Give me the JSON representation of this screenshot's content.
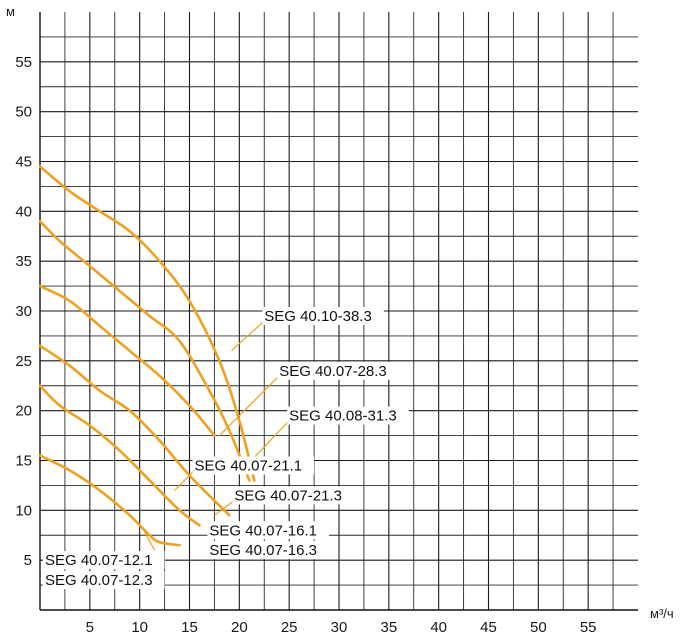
{
  "chart_data": {
    "type": "line",
    "title": "",
    "xlabel": "м³/ч",
    "ylabel": "м",
    "xlim": [
      0,
      60
    ],
    "ylim": [
      0,
      60
    ],
    "grid": true,
    "x_ticks": [
      5,
      10,
      15,
      20,
      25,
      30,
      35,
      40,
      45,
      50,
      55
    ],
    "y_ticks": [
      5,
      10,
      15,
      20,
      25,
      30,
      35,
      40,
      45,
      50,
      55
    ],
    "curve_color": "#f0a020",
    "series": [
      {
        "name": "SEG 40.10-38.3",
        "points": [
          [
            0,
            44.5
          ],
          [
            3,
            42
          ],
          [
            6,
            40
          ],
          [
            9,
            38
          ],
          [
            12,
            35
          ],
          [
            15,
            31
          ],
          [
            18,
            25
          ],
          [
            20,
            19
          ],
          [
            21.5,
            13
          ]
        ]
      },
      {
        "name": "SEG 40.08-31.3",
        "points": [
          [
            0,
            39
          ],
          [
            2,
            37
          ],
          [
            5,
            34.5
          ],
          [
            8,
            32
          ],
          [
            11,
            29.5
          ],
          [
            14,
            27
          ],
          [
            17,
            22
          ],
          [
            19,
            18
          ],
          [
            21,
            13
          ]
        ]
      },
      {
        "name": "SEG 40.07-28.3",
        "points": [
          [
            0,
            32.5
          ],
          [
            3,
            31
          ],
          [
            6,
            28.5
          ],
          [
            9,
            26
          ],
          [
            12,
            23.5
          ],
          [
            15,
            20.5
          ],
          [
            17.5,
            17.5
          ]
        ]
      },
      {
        "name": "SEG 40.07-21.3",
        "points": [
          [
            0,
            26.5
          ],
          [
            3,
            24.5
          ],
          [
            6,
            22
          ],
          [
            9,
            20
          ],
          [
            12,
            17
          ],
          [
            15,
            13.5
          ],
          [
            19,
            9.5
          ]
        ]
      },
      {
        "name": "SEG 40.07-16.3",
        "points": [
          [
            0,
            22.5
          ],
          [
            2,
            20.5
          ],
          [
            5,
            18.5
          ],
          [
            8,
            16
          ],
          [
            11,
            13
          ],
          [
            14,
            10
          ],
          [
            16,
            8.5
          ]
        ]
      },
      {
        "name": "SEG 40.07-12.3",
        "points": [
          [
            0,
            15.5
          ],
          [
            3,
            14
          ],
          [
            6,
            12
          ],
          [
            9,
            9.5
          ],
          [
            11,
            7.5
          ],
          [
            12,
            6.8
          ],
          [
            14,
            6.5
          ]
        ]
      }
    ],
    "annotations": [
      {
        "text": "SEG 40.10-38.3",
        "at": [
          22.5,
          29
        ]
      },
      {
        "text": "SEG 40.07-28.3",
        "at": [
          24,
          23.5
        ]
      },
      {
        "text": "SEG 40.08-31.3",
        "at": [
          25,
          19
        ]
      },
      {
        "text": "SEG 40.07-21.1",
        "at": [
          15.5,
          14
        ]
      },
      {
        "text": "SEG 40.07-21.3",
        "at": [
          19.5,
          11
        ]
      },
      {
        "text": "SEG 40.07-16.1",
        "at": [
          17,
          7.5
        ]
      },
      {
        "text": "SEG 40.07-16.3",
        "at": [
          17,
          5.5
        ]
      },
      {
        "text": "SEG 40.07-12.1",
        "at": [
          0.5,
          4.5
        ]
      },
      {
        "text": "SEG 40.07-12.3",
        "at": [
          0.5,
          2.5
        ]
      }
    ]
  },
  "axis": {
    "y_unit": "м",
    "x_unit": "м³/ч"
  }
}
